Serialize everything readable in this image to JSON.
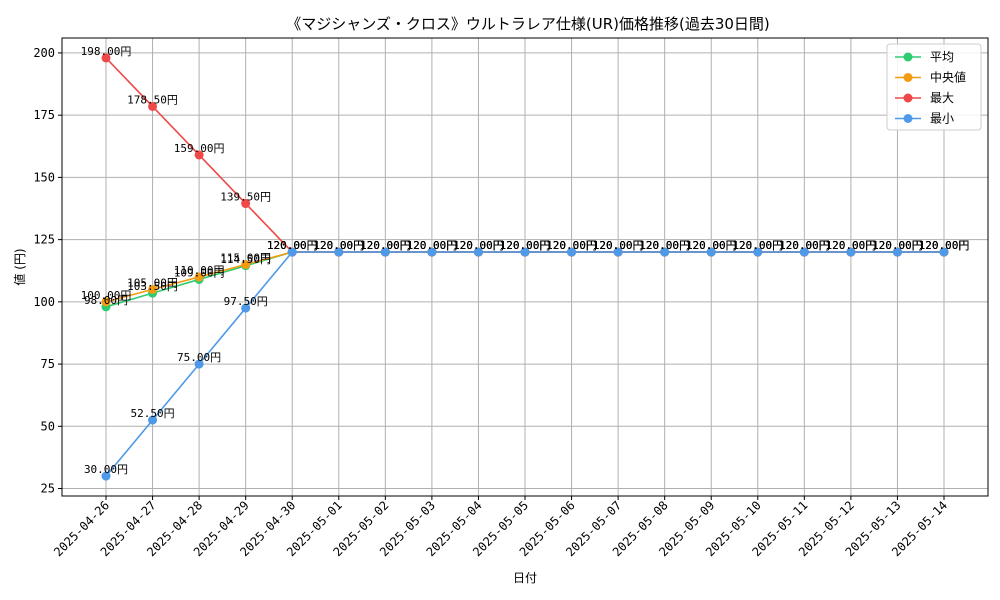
{
  "chart_data": {
    "type": "line",
    "title": "《マジシャンズ・クロス》ウルトラレア仕様(UR)価格推移(過去30日間)",
    "xlabel": "日付",
    "ylabel": "値 (円)",
    "ylim": [
      22,
      206
    ],
    "yticks": [
      25,
      50,
      75,
      100,
      125,
      150,
      175,
      200
    ],
    "grid": true,
    "legend_position": "top-right",
    "categories": [
      "2025-04-26",
      "2025-04-27",
      "2025-04-28",
      "2025-04-29",
      "2025-04-30",
      "2025-05-01",
      "2025-05-02",
      "2025-05-03",
      "2025-05-04",
      "2025-05-05",
      "2025-05-06",
      "2025-05-07",
      "2025-05-08",
      "2025-05-09",
      "2025-05-10",
      "2025-05-11",
      "2025-05-12",
      "2025-05-13",
      "2025-05-14"
    ],
    "series": [
      {
        "name": "平均",
        "color": "#2ecc71",
        "values": [
          98.0,
          103.5,
          109.0,
          114.5,
          120,
          120,
          120,
          120,
          120,
          120,
          120,
          120,
          120,
          120,
          120,
          120,
          120,
          120,
          120
        ],
        "labels": [
          "98.00円",
          "103.50円",
          "109.00円",
          "114.50円",
          "120.00円",
          "120.00円",
          "120.00円",
          "120.00円",
          "120.00円",
          "120.00円",
          "120.00円",
          "120.00円",
          "120.00円",
          "120.00円",
          "120.00円",
          "120.00円",
          "120.00円",
          "120.00円",
          "120.00円"
        ]
      },
      {
        "name": "中央値",
        "color": "#f39c12",
        "values": [
          100,
          105,
          110,
          115,
          120,
          120,
          120,
          120,
          120,
          120,
          120,
          120,
          120,
          120,
          120,
          120,
          120,
          120,
          120
        ],
        "labels": [
          "100.00円",
          "105.00円",
          "110.00円",
          "115.00円",
          "120.00円",
          "120.00円",
          "120.00円",
          "120.00円",
          "120.00円",
          "120.00円",
          "120.00円",
          "120.00円",
          "120.00円",
          "120.00円",
          "120.00円",
          "120.00円",
          "120.00円",
          "120.00円",
          "120.00円"
        ]
      },
      {
        "name": "最大",
        "color": "#f04848",
        "values": [
          198,
          178.5,
          159,
          139.5,
          120,
          120,
          120,
          120,
          120,
          120,
          120,
          120,
          120,
          120,
          120,
          120,
          120,
          120,
          120
        ],
        "labels": [
          "198.00円",
          "178.50円",
          "159.00円",
          "139.50円",
          "120.00円",
          "120.00円",
          "120.00円",
          "120.00円",
          "120.00円",
          "120.00円",
          "120.00円",
          "120.00円",
          "120.00円",
          "120.00円",
          "120.00円",
          "120.00円",
          "120.00円",
          "120.00円",
          "120.00円"
        ]
      },
      {
        "name": "最小",
        "color": "#4f9ae8",
        "values": [
          30,
          52.5,
          75,
          97.5,
          120,
          120,
          120,
          120,
          120,
          120,
          120,
          120,
          120,
          120,
          120,
          120,
          120,
          120,
          120
        ],
        "labels": [
          "30.00円",
          "52.50円",
          "75.00円",
          "97.50円",
          "120.00円",
          "120.00円",
          "120.00円",
          "120.00円",
          "120.00円",
          "120.00円",
          "120.00円",
          "120.00円",
          "120.00円",
          "120.00円",
          "120.00円",
          "120.00円",
          "120.00円",
          "120.00円",
          "120.00円"
        ]
      }
    ]
  }
}
